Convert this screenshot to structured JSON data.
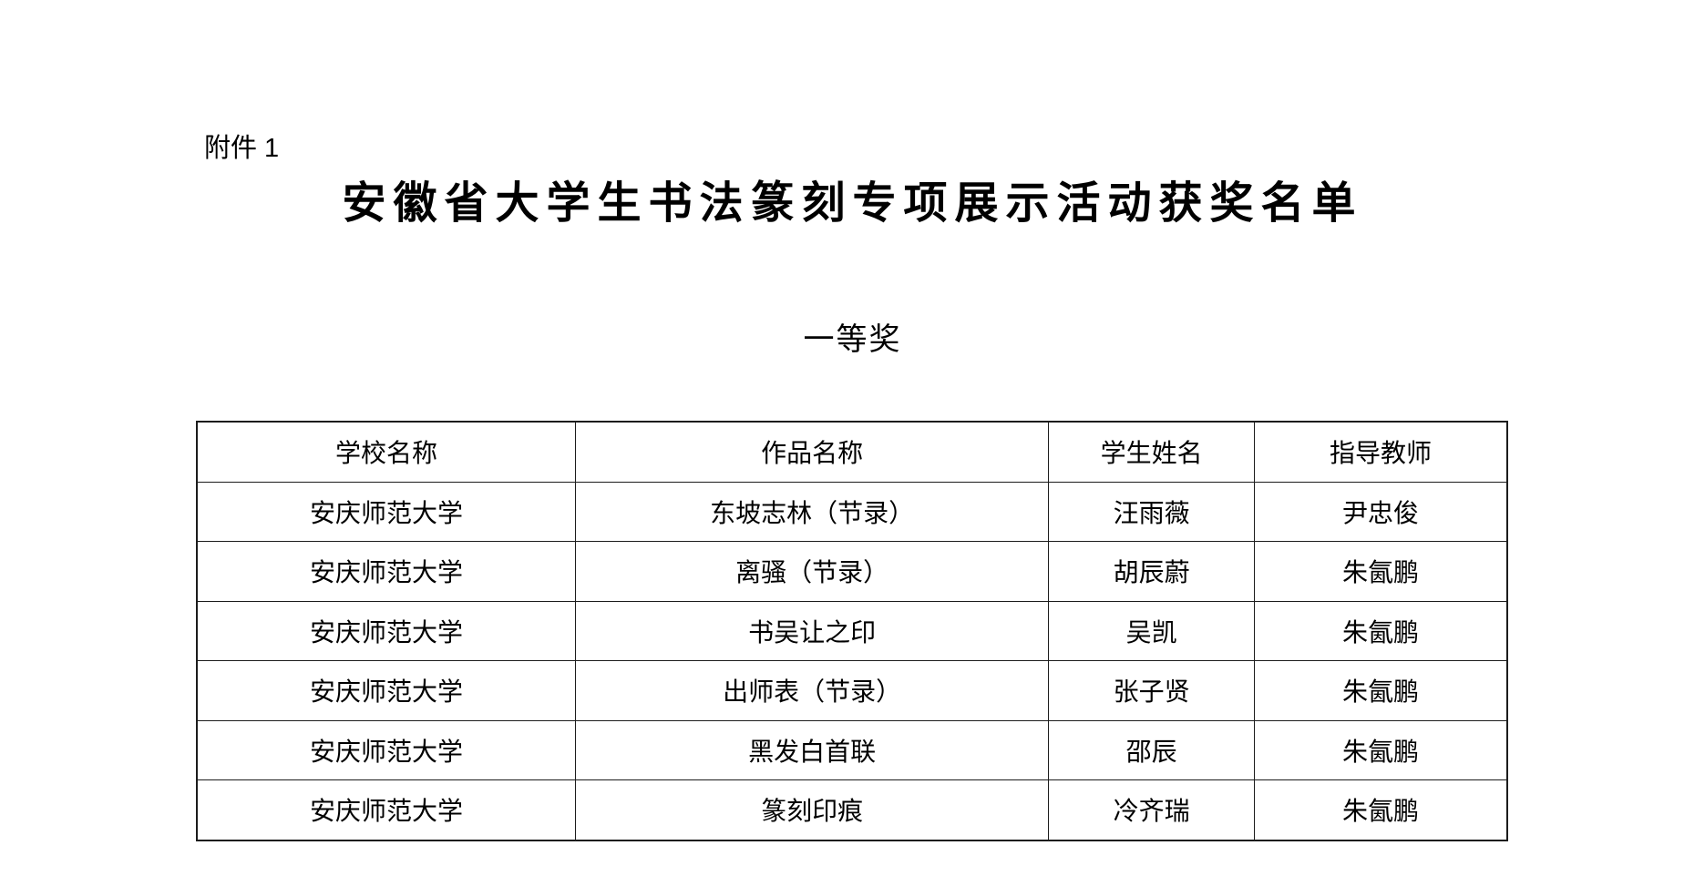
{
  "document": {
    "attachment_label": "附件 1",
    "title": "安徽省大学生书法篆刻专项展示活动获奖名单",
    "award_level": "一等奖"
  },
  "table": {
    "columns": [
      "学校名称",
      "作品名称",
      "学生姓名",
      "指导教师"
    ],
    "column_width_percents": [
      28.9,
      36.1,
      15.7,
      19.3
    ],
    "rows": [
      [
        "安庆师范大学",
        "东坡志林（节录）",
        "汪雨薇",
        "尹忠俊"
      ],
      [
        "安庆师范大学",
        "离骚（节录）",
        "胡辰蔚",
        "朱氤鹏"
      ],
      [
        "安庆师范大学",
        "书吴让之印",
        "吴凯",
        "朱氤鹏"
      ],
      [
        "安庆师范大学",
        "出师表（节录）",
        "张子贤",
        "朱氤鹏"
      ],
      [
        "安庆师范大学",
        "黑发白首联",
        "邵辰",
        "朱氤鹏"
      ],
      [
        "安庆师范大学",
        "篆刻印痕",
        "冷齐瑞",
        "朱氤鹏"
      ]
    ]
  },
  "colors": {
    "page_background": "#ffffff",
    "text": "#000000",
    "table_border": "#1c1c1c"
  }
}
